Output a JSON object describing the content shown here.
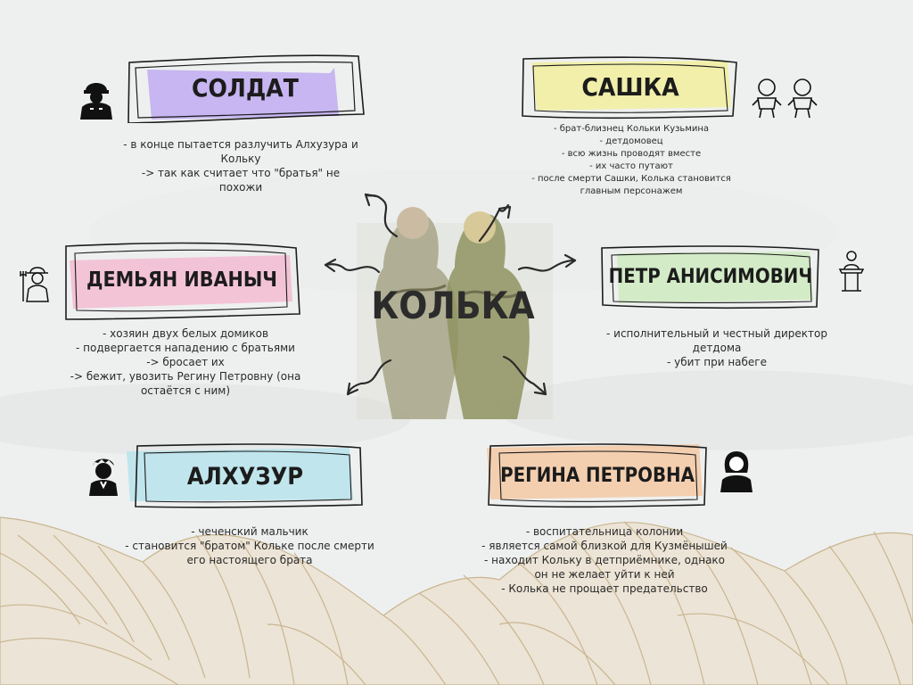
{
  "center": {
    "label": "КОЛЬКА"
  },
  "characters": {
    "soldat": {
      "name": "СОЛДАТ",
      "lines": [
        "- в конце пытается разлучить Алхузура и",
        "Кольку",
        "-> так как считает что \"братья\" не",
        "похожи"
      ]
    },
    "sashka": {
      "name": "САШКА",
      "lines": [
        "- брат-близнец Кольки Кузьмина",
        "- детдомовец",
        "- всю жизнь проводят вместе",
        "- их часто путают",
        "- после смерти Сашки, Колька становится",
        "главным персонажем"
      ]
    },
    "demyan": {
      "name": "ДЕМЬЯН ИВАНЫЧ",
      "lines": [
        "- хозяин двух белых домиков",
        "- подвергается нападению с братьями",
        "-> бросает их",
        "-> бежит, увозить Регину Петровну (она",
        "остаётся с ним)"
      ]
    },
    "petr": {
      "name": "ПЕТР АНИСИМОВИЧ",
      "lines": [
        "- исполнительный и честный директор",
        "детдома",
        "- убит при набеге"
      ]
    },
    "alkhuzur": {
      "name": "АЛХУЗУР",
      "lines": [
        "- чеченский мальчик",
        "- становится \"братом\" Кольке после смерти",
        "его настоящего брата"
      ]
    },
    "regina": {
      "name": "РЕГИНА ПЕТРОВНА",
      "lines": [
        "- воспитательница колонии",
        "- является самой близкой для Кузмёнышей",
        "- находит Кольку в детприёмнике, однако",
        "он не желает уйти к ней",
        "- Колька не прощает предательство"
      ]
    }
  },
  "colors": {
    "soldat": "#b9a3f2",
    "sashka": "#f1ef9e",
    "demyan": "#f4b8cf",
    "petr": "#cfeac0",
    "alkhuzur": "#b7e3ec",
    "regina": "#f3c9a4",
    "ink": "#1c1c1c",
    "mountain_line": "#c9b590"
  },
  "icons": {
    "soldat": "soldier-icon",
    "sashka": "twin-babies-icon",
    "demyan": "farmer-icon",
    "petr": "podium-speaker-icon",
    "alkhuzur": "boy-icon",
    "regina": "woman-icon"
  }
}
